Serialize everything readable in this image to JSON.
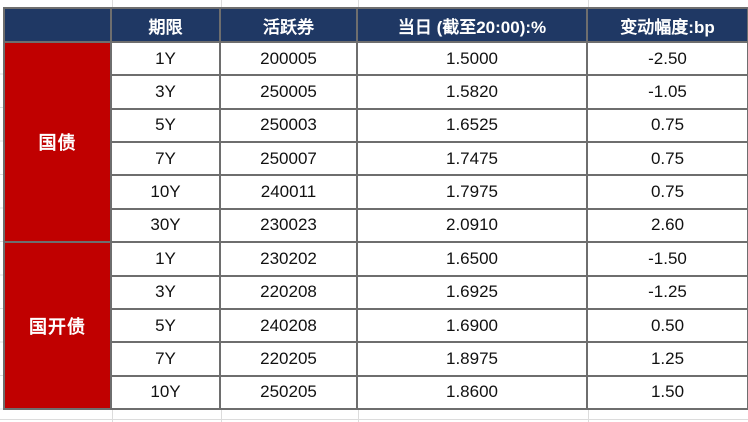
{
  "table": {
    "columns": [
      "",
      "期限",
      "活跃券",
      "当日 (截至20:00):%",
      "变动幅度:bp"
    ]
  },
  "chart_data": {
    "type": "table",
    "columns": [
      "",
      "期限",
      "活跃券",
      "当日 (截至20:00):%",
      "变动幅度:bp"
    ],
    "groups": [
      {
        "label": "国债",
        "rows": [
          [
            "1Y",
            "200005",
            "1.5000",
            "-2.50"
          ],
          [
            "3Y",
            "250005",
            "1.5820",
            "-1.05"
          ],
          [
            "5Y",
            "250003",
            "1.6525",
            "0.75"
          ],
          [
            "7Y",
            "250007",
            "1.7475",
            "0.75"
          ],
          [
            "10Y",
            "240011",
            "1.7975",
            "0.75"
          ],
          [
            "30Y",
            "230023",
            "2.0910",
            "2.60"
          ]
        ]
      },
      {
        "label": "国开债",
        "rows": [
          [
            "1Y",
            "230202",
            "1.6500",
            "-1.50"
          ],
          [
            "3Y",
            "220208",
            "1.6925",
            "-1.25"
          ],
          [
            "5Y",
            "240208",
            "1.6900",
            "0.50"
          ],
          [
            "7Y",
            "220205",
            "1.8975",
            "1.25"
          ],
          [
            "10Y",
            "250205",
            "1.8600",
            "1.50"
          ]
        ]
      }
    ]
  },
  "colors": {
    "header_bg": "#1f3864",
    "group_bg": "#c00000",
    "cell_border": "#6e6e6e",
    "faint_grid": "#dcdcdc",
    "header_text": "#ffffff",
    "data_text": "#111111"
  }
}
